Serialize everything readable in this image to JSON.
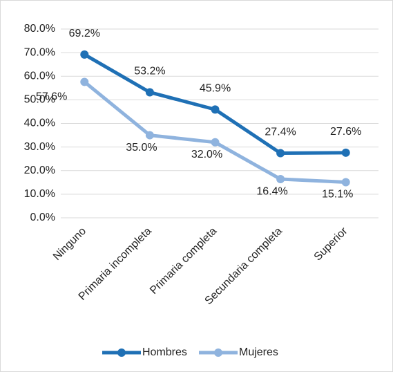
{
  "chart_data": {
    "type": "line",
    "categories": [
      "Ninguno",
      "Primaria incompleta",
      "Primaria completa",
      "Secundaria completa",
      "Superior"
    ],
    "series": [
      {
        "name": "Hombres",
        "color": "#1f70b5",
        "values": [
          69.2,
          53.2,
          45.9,
          27.4,
          27.6
        ],
        "value_labels": [
          "69.2%",
          "53.2%",
          "45.9%",
          "27.4%",
          "27.6%"
        ]
      },
      {
        "name": "Mujeres",
        "color": "#8fb3de",
        "values": [
          57.6,
          35.0,
          32.0,
          16.4,
          15.1
        ],
        "value_labels": [
          "57.6%",
          "35.0%",
          "32.0%",
          "16.4%",
          "15.1%"
        ]
      }
    ],
    "ylim": [
      0,
      80
    ],
    "yticks": [
      {
        "value": 0,
        "label": "0.0%"
      },
      {
        "value": 10,
        "label": "10.0%"
      },
      {
        "value": 20,
        "label": "20.0%"
      },
      {
        "value": 30,
        "label": "30.0%"
      },
      {
        "value": 40,
        "label": "40.0%"
      },
      {
        "value": 50,
        "label": "50.0%"
      },
      {
        "value": 60,
        "label": "60.0%"
      },
      {
        "value": 70,
        "label": "70.0%"
      },
      {
        "value": 80,
        "label": "80.0%"
      }
    ],
    "grid": true,
    "legend": "bottom"
  }
}
